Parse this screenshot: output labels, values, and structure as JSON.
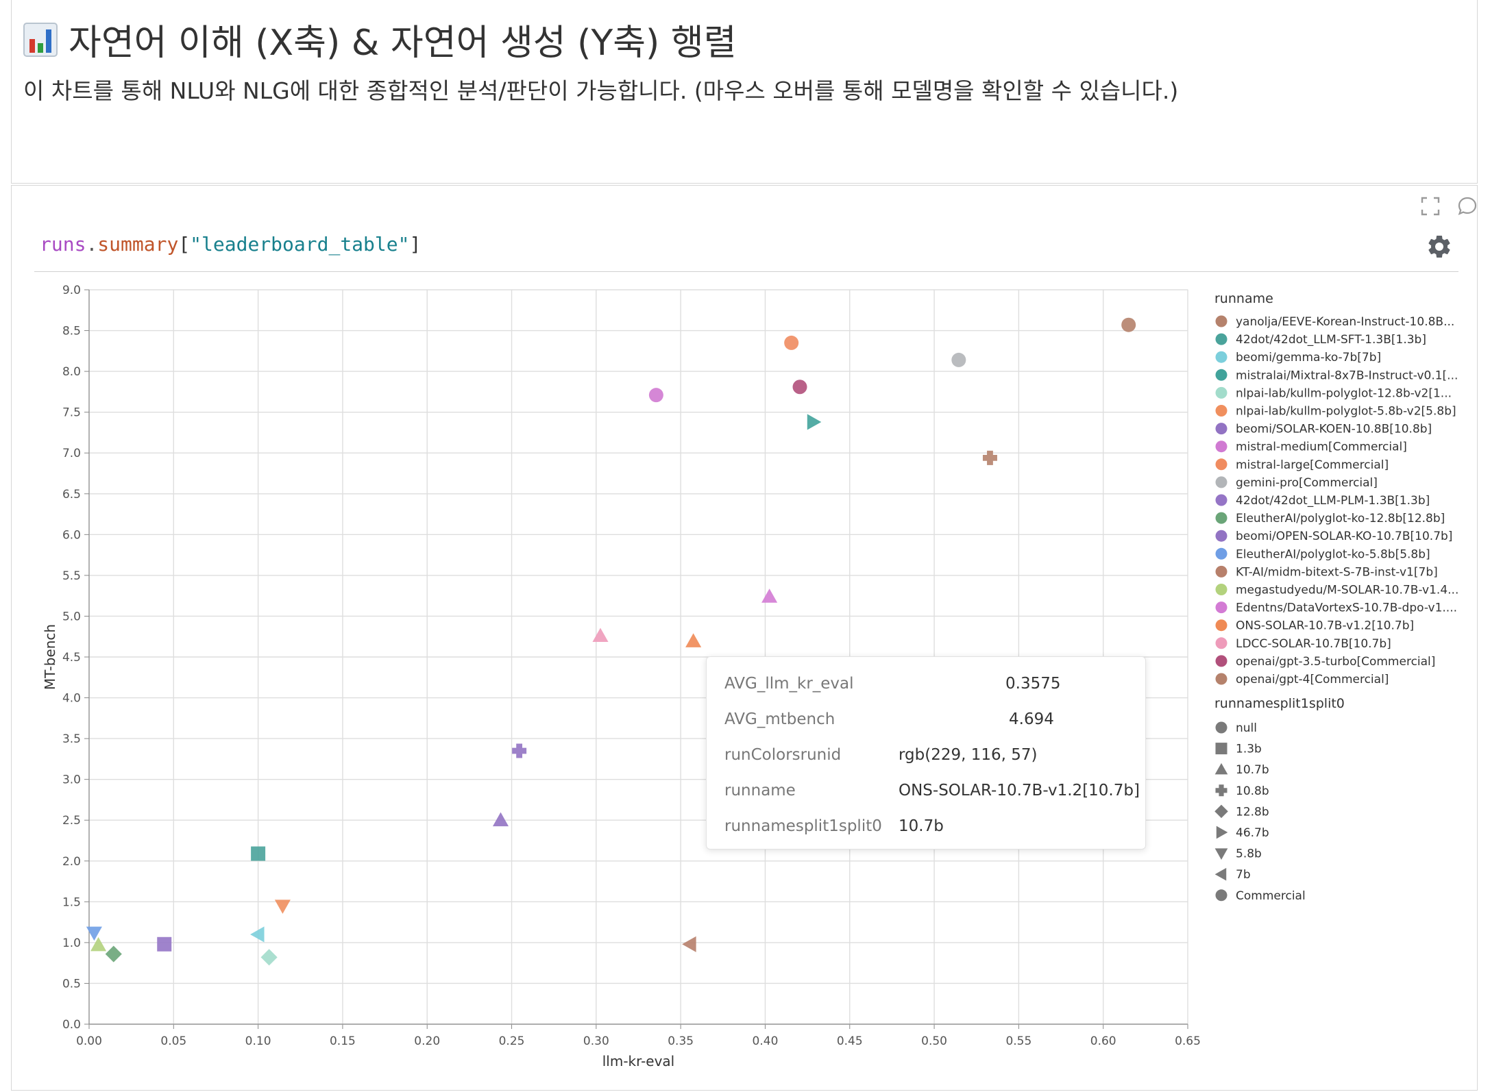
{
  "header": {
    "title": "자연어 이해 (X축) & 자연어 생성 (Y축) 행렬",
    "title_icon": "bar-chart-icon",
    "subtitle": "이 차트를 통해 NLU와 NLG에 대한 종합적인 분석/판단이 가능합니다. (마우스 오버를 통해 모델명을 확인할 수 있습니다.)"
  },
  "toolbar": {
    "fullscreen_icon": "fullscreen-icon",
    "comment_icon": "comment-icon",
    "settings_icon": "gear-icon"
  },
  "query": {
    "runs": "runs",
    "dot": ".",
    "summary": "summary",
    "open": "[",
    "key": "\"leaderboard_table\"",
    "close": "]"
  },
  "tooltip": {
    "rows": [
      {
        "key": "AVG_llm_kr_eval",
        "value": "0.3575"
      },
      {
        "key": "AVG_mtbench",
        "value": "4.694"
      },
      {
        "key": "runColorsrunid",
        "value": "rgb(229, 116, 57)"
      },
      {
        "key": "runname",
        "value": "ONS-SOLAR-10.7B-v1.2[10.7b]"
      },
      {
        "key": "runnamesplit1split0",
        "value": "10.7b"
      }
    ]
  },
  "chart_data": {
    "type": "scatter",
    "xlabel": "llm-kr-eval",
    "ylabel": "MT-bench",
    "xlim": [
      0,
      0.65
    ],
    "ylim": [
      0,
      9.0
    ],
    "x_ticks": [
      "0.00",
      "0.05",
      "0.10",
      "0.15",
      "0.20",
      "0.25",
      "0.30",
      "0.35",
      "0.40",
      "0.45",
      "0.50",
      "0.55",
      "0.60",
      "0.65"
    ],
    "y_ticks": [
      "0.0",
      "0.5",
      "1.0",
      "1.5",
      "2.0",
      "2.5",
      "3.0",
      "3.5",
      "4.0",
      "4.5",
      "5.0",
      "5.5",
      "6.0",
      "6.5",
      "7.0",
      "7.5",
      "8.0",
      "8.5",
      "9.0"
    ],
    "grid": true,
    "color_legend_title": "runname",
    "shape_legend_title": "runnamesplit1split0",
    "runs": [
      {
        "name": "yanolja/EEVE-Korean-Instruct-10.8B...",
        "color": "#b5826c",
        "shape": "10.8b"
      },
      {
        "name": "42dot/42dot_LLM-SFT-1.3B[1.3b]",
        "color": "#4aa39b",
        "shape": "1.3b"
      },
      {
        "name": "beomi/gemma-ko-7b[7b]",
        "color": "#7ccfdc",
        "shape": "7b"
      },
      {
        "name": "mistralai/Mixtral-8x7B-Instruct-v0.1[...",
        "color": "#41a39b",
        "shape": "46.7b"
      },
      {
        "name": "nlpai-lab/kullm-polyglot-12.8b-v2[1...",
        "color": "#a2dccb",
        "shape": "12.8b"
      },
      {
        "name": "nlpai-lab/kullm-polyglot-5.8b-v2[5.8b]",
        "color": "#f08f5e",
        "shape": "5.8b"
      },
      {
        "name": "beomi/SOLAR-KOEN-10.8B[10.8b]",
        "color": "#9273c3",
        "shape": "10.8b"
      },
      {
        "name": "mistral-medium[Commercial]",
        "color": "#d07ad2",
        "shape": "Commercial"
      },
      {
        "name": "mistral-large[Commercial]",
        "color": "#f08c60",
        "shape": "Commercial"
      },
      {
        "name": "gemini-pro[Commercial]",
        "color": "#b2b5b8",
        "shape": "Commercial"
      },
      {
        "name": "42dot/42dot_LLM-PLM-1.3B[1.3b]",
        "color": "#9575c6",
        "shape": "1.3b"
      },
      {
        "name": "EleutherAI/polyglot-ko-12.8b[12.8b]",
        "color": "#6aa578",
        "shape": "12.8b"
      },
      {
        "name": "beomi/OPEN-SOLAR-KO-10.7B[10.7b]",
        "color": "#9273c3",
        "shape": "10.7b"
      },
      {
        "name": "EleutherAI/polyglot-ko-5.8b[5.8b]",
        "color": "#6f9ee5",
        "shape": "5.8b"
      },
      {
        "name": "KT-AI/midm-bitext-S-7B-inst-v1[7b]",
        "color": "#b7806b",
        "shape": "7b"
      },
      {
        "name": "megastudyedu/M-SOLAR-10.7B-v1.4...",
        "color": "#b3d27d",
        "shape": "10.7b"
      },
      {
        "name": "Edentns/DataVortexS-10.7B-dpo-v1....",
        "color": "#d37bd4",
        "shape": "10.7b"
      },
      {
        "name": "ONS-SOLAR-10.7B-v1.2[10.7b]",
        "color": "#ef8a55",
        "shape": "10.7b"
      },
      {
        "name": "LDCC-SOLAR-10.7B[10.7b]",
        "color": "#ee9bba",
        "shape": "10.7b"
      },
      {
        "name": "openai/gpt-3.5-turbo[Commercial]",
        "color": "#b1507b",
        "shape": "Commercial"
      },
      {
        "name": "openai/gpt-4[Commercial]",
        "color": "#b5826c",
        "shape": "Commercial"
      }
    ],
    "shapes": [
      {
        "label": "null",
        "symbol": "circle"
      },
      {
        "label": "1.3b",
        "symbol": "square"
      },
      {
        "label": "10.7b",
        "symbol": "triangle-up"
      },
      {
        "label": "10.8b",
        "symbol": "cross"
      },
      {
        "label": "12.8b",
        "symbol": "diamond"
      },
      {
        "label": "46.7b",
        "symbol": "triangle-right"
      },
      {
        "label": "5.8b",
        "symbol": "triangle-down"
      },
      {
        "label": "7b",
        "symbol": "triangle-left"
      },
      {
        "label": "Commercial",
        "symbol": "circle"
      }
    ],
    "points": [
      {
        "run": "openai/gpt-4[Commercial]",
        "x": 0.615,
        "y": 8.57,
        "color": "#b5826c",
        "symbol": "circle"
      },
      {
        "run": "mistral-large[Commercial]",
        "x": 0.4155,
        "y": 8.35,
        "color": "#f08c60",
        "symbol": "circle"
      },
      {
        "run": "gemini-pro[Commercial]",
        "x": 0.5145,
        "y": 8.14,
        "color": "#b2b5b8",
        "symbol": "circle"
      },
      {
        "run": "openai/gpt-3.5-turbo[Commercial]",
        "x": 0.4205,
        "y": 7.81,
        "color": "#b1507b",
        "symbol": "circle"
      },
      {
        "run": "mistral-medium[Commercial]",
        "x": 0.3355,
        "y": 7.71,
        "color": "#d07ad2",
        "symbol": "circle"
      },
      {
        "run": "mistralai/Mixtral-8x7B-Instruct-v0.1[...",
        "x": 0.4285,
        "y": 7.38,
        "color": "#41a39b",
        "symbol": "triangle-right"
      },
      {
        "run": "yanolja/EEVE-Korean-Instruct-10.8B...",
        "x": 0.533,
        "y": 6.94,
        "color": "#b5826c",
        "symbol": "cross"
      },
      {
        "run": "Edentns/DataVortexS-10.7B-dpo-v1....",
        "x": 0.4025,
        "y": 5.24,
        "color": "#d37bd4",
        "symbol": "triangle-up"
      },
      {
        "run": "LDCC-SOLAR-10.7B[10.7b]",
        "x": 0.3025,
        "y": 4.76,
        "color": "#ee9bba",
        "symbol": "triangle-up"
      },
      {
        "run": "ONS-SOLAR-10.7B-v1.2[10.7b]",
        "x": 0.3575,
        "y": 4.694,
        "color": "#ef8a55",
        "symbol": "triangle-up"
      },
      {
        "run": "beomi/SOLAR-KOEN-10.8B[10.8b]",
        "x": 0.2545,
        "y": 3.35,
        "color": "#9273c3",
        "symbol": "cross"
      },
      {
        "run": "beomi/OPEN-SOLAR-KO-10.7B[10.7b]",
        "x": 0.2435,
        "y": 2.5,
        "color": "#9273c3",
        "symbol": "triangle-up"
      },
      {
        "run": "42dot/42dot_LLM-SFT-1.3B[1.3b]",
        "x": 0.1,
        "y": 2.09,
        "color": "#4aa39b",
        "symbol": "square"
      },
      {
        "run": "nlpai-lab/kullm-polyglot-5.8b-v2[5.8b]",
        "x": 0.1145,
        "y": 1.45,
        "color": "#f08f5e",
        "symbol": "triangle-down"
      },
      {
        "run": "EleutherAI/polyglot-ko-5.8b[5.8b]",
        "x": 0.003,
        "y": 1.12,
        "color": "#6f9ee5",
        "symbol": "triangle-down"
      },
      {
        "run": "beomi/gemma-ko-7b[7b]",
        "x": 0.1,
        "y": 1.1,
        "color": "#7ccfdc",
        "symbol": "triangle-left"
      },
      {
        "run": "megastudyedu/M-SOLAR-10.7B-v1.4...",
        "x": 0.0055,
        "y": 0.97,
        "color": "#b3d27d",
        "symbol": "triangle-up"
      },
      {
        "run": "42dot/42dot_LLM-PLM-1.3B[1.3b]",
        "x": 0.0445,
        "y": 0.98,
        "color": "#9575c6",
        "symbol": "square"
      },
      {
        "run": "KT-AI/midm-bitext-S-7B-inst-v1[7b]",
        "x": 0.3555,
        "y": 0.98,
        "color": "#b7806b",
        "symbol": "triangle-left"
      },
      {
        "run": "EleutherAI/polyglot-ko-12.8b[12.8b]",
        "x": 0.0145,
        "y": 0.86,
        "color": "#6aa578",
        "symbol": "diamond"
      },
      {
        "run": "nlpai-lab/kullm-polyglot-12.8b-v2[1...",
        "x": 0.1065,
        "y": 0.82,
        "color": "#a2dccb",
        "symbol": "diamond"
      }
    ]
  }
}
